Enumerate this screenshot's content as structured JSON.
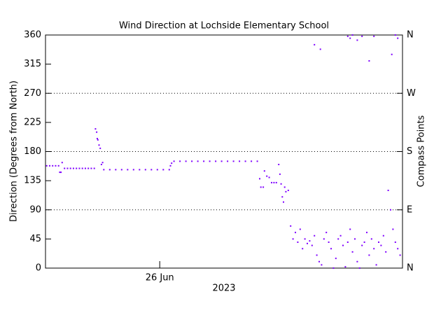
{
  "chart_data": {
    "type": "scatter",
    "title": "Wind Direction at Lochside Elementary School",
    "ylabel": "Direction (Degrees from North)",
    "y2label": "Compass Points",
    "xlabel": "2023",
    "color": "#7f00ff",
    "xlim": [
      25.04,
      28.04
    ],
    "xticks": [
      {
        "value": 26,
        "label": "26 Jun"
      }
    ],
    "ylim": [
      0,
      360
    ],
    "yticks": [
      0,
      45,
      90,
      135,
      180,
      225,
      270,
      315,
      360
    ],
    "y2lim": [
      0,
      360
    ],
    "y2ticks": [
      {
        "value": 0,
        "label": "N"
      },
      {
        "value": 90,
        "label": "E"
      },
      {
        "value": 180,
        "label": "S"
      },
      {
        "value": 270,
        "label": "W"
      },
      {
        "value": 360,
        "label": "N"
      }
    ],
    "grid": true,
    "x": [
      25.05,
      25.075,
      25.1,
      25.125,
      25.15,
      25.16,
      25.17,
      25.18,
      25.2,
      25.225,
      25.25,
      25.275,
      25.3,
      25.325,
      25.35,
      25.375,
      25.4,
      25.425,
      25.45,
      25.46,
      25.47,
      25.475,
      25.48,
      25.49,
      25.5,
      25.51,
      25.52,
      25.53,
      25.58,
      25.63,
      25.68,
      25.73,
      25.78,
      25.83,
      25.88,
      25.93,
      25.98,
      26.03,
      26.08,
      26.09,
      26.1,
      26.12,
      26.17,
      26.22,
      26.27,
      26.32,
      26.37,
      26.42,
      26.47,
      26.52,
      26.57,
      26.62,
      26.67,
      26.72,
      26.77,
      26.82,
      26.84,
      26.85,
      26.87,
      26.88,
      26.9,
      26.92,
      26.94,
      26.96,
      26.98,
      27.0,
      27.01,
      27.02,
      27.03,
      27.04,
      27.05,
      27.06,
      27.08,
      27.1,
      27.12,
      27.14,
      27.16,
      27.18,
      27.2,
      27.22,
      27.24,
      27.26,
      27.28,
      27.3,
      27.32,
      27.34,
      27.36,
      27.38,
      27.4,
      27.42,
      27.44,
      27.46,
      27.48,
      27.5,
      27.52,
      27.54,
      27.56,
      27.58,
      27.6,
      27.62,
      27.64,
      27.66,
      27.68,
      27.7,
      27.72,
      27.74,
      27.76,
      27.78,
      27.8,
      27.82,
      27.84,
      27.86,
      27.88,
      27.9,
      27.92,
      27.94,
      27.96,
      27.98,
      28.0,
      28.02,
      27.3,
      27.35,
      27.58,
      27.6,
      27.62,
      27.66,
      27.7,
      27.76,
      27.8,
      27.95,
      27.98,
      28.0
    ],
    "values": [
      158,
      158,
      158,
      158,
      158,
      148,
      148,
      163,
      154,
      154,
      154,
      154,
      154,
      154,
      154,
      154,
      154,
      154,
      154,
      215,
      210,
      200,
      198,
      190,
      185,
      160,
      163,
      152,
      152,
      152,
      152,
      152,
      152,
      152,
      152,
      152,
      152,
      152,
      152,
      158,
      162,
      165,
      165,
      165,
      165,
      165,
      165,
      165,
      165,
      165,
      165,
      165,
      165,
      165,
      165,
      165,
      138,
      125,
      125,
      150,
      142,
      140,
      132,
      132,
      132,
      160,
      145,
      130,
      110,
      102,
      125,
      118,
      120,
      65,
      45,
      55,
      40,
      60,
      30,
      45,
      38,
      42,
      35,
      50,
      20,
      10,
      5,
      45,
      55,
      40,
      30,
      0,
      15,
      45,
      50,
      35,
      2,
      40,
      60,
      25,
      45,
      10,
      0,
      35,
      40,
      55,
      20,
      45,
      30,
      5,
      40,
      35,
      50,
      25,
      120,
      90,
      60,
      40,
      30,
      20,
      345,
      338,
      358,
      355,
      360,
      352,
      358,
      320,
      358,
      330,
      360,
      355
    ]
  }
}
